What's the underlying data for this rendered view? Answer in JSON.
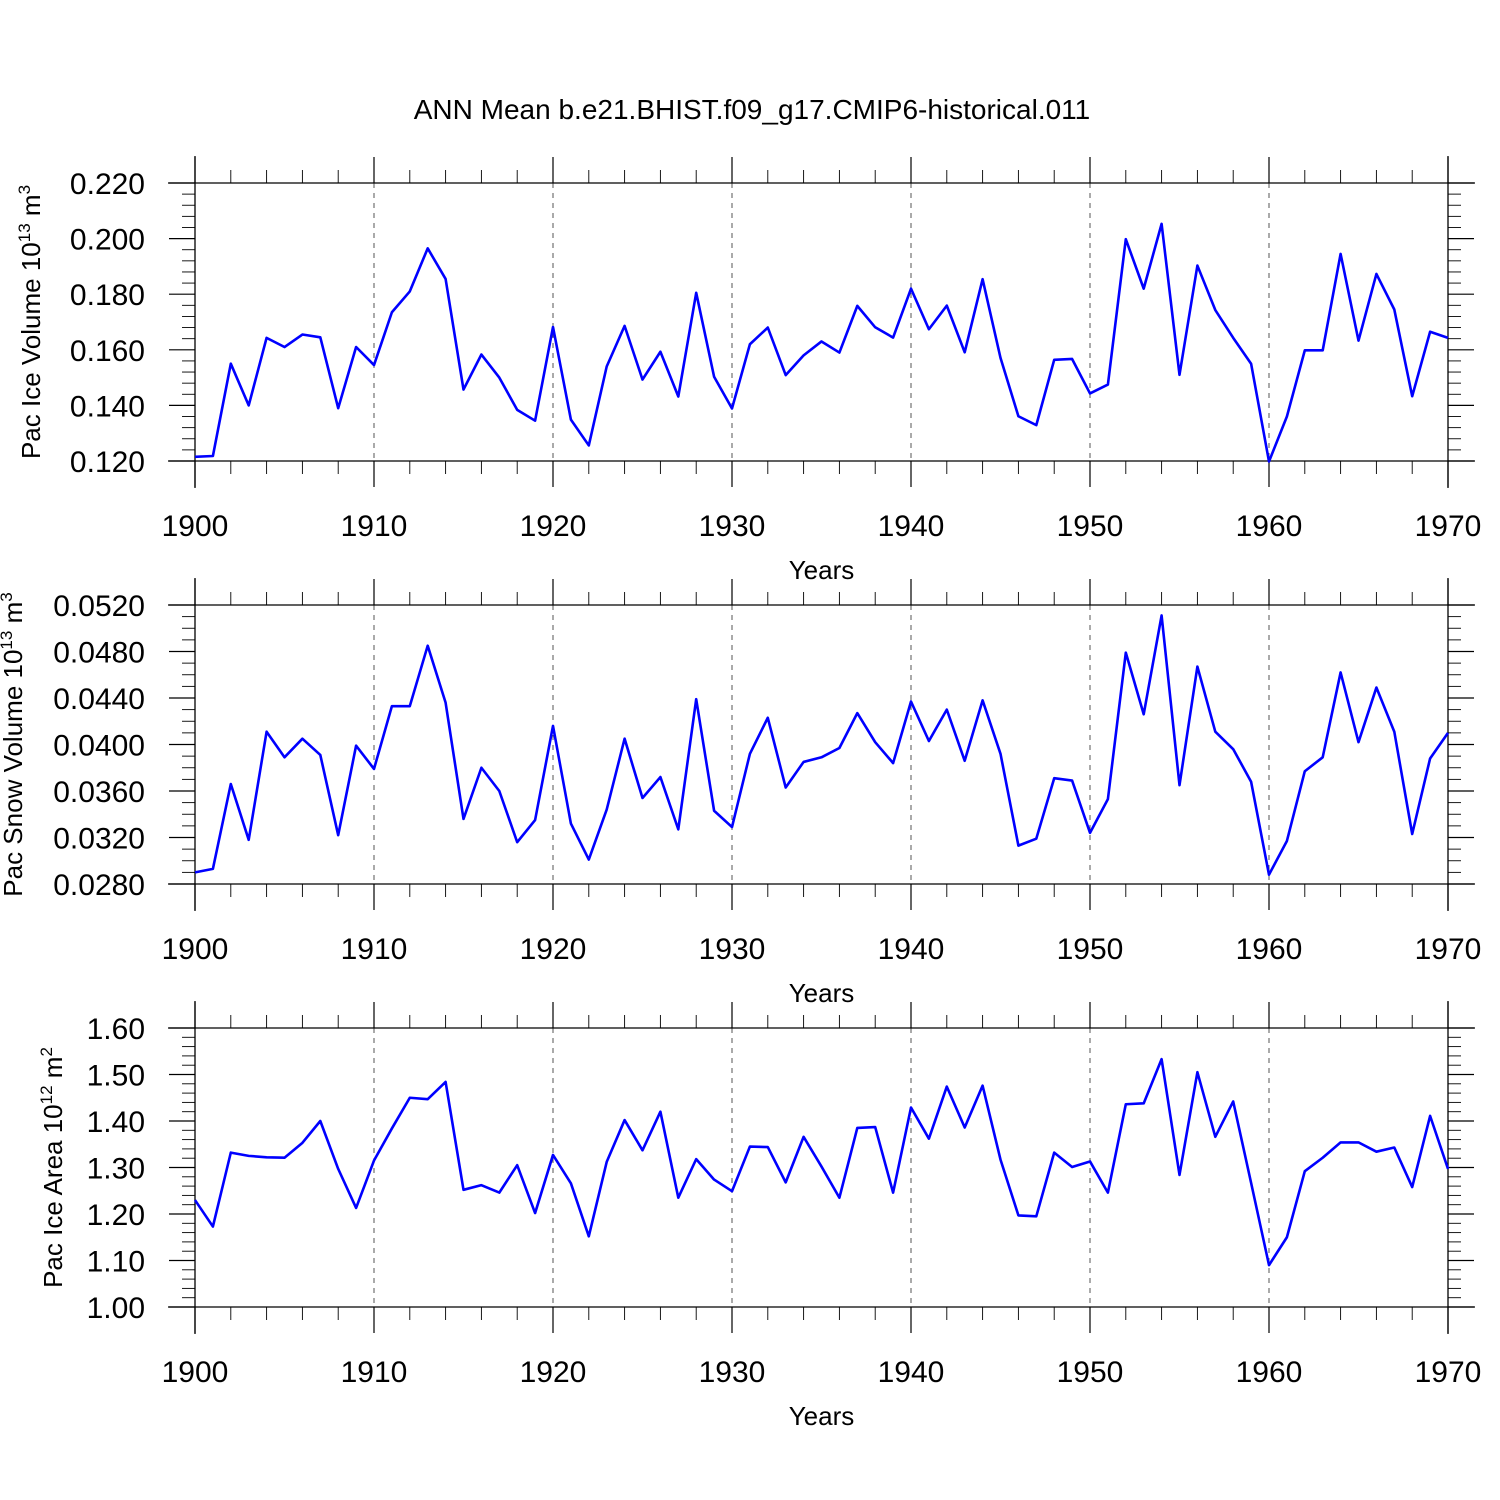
{
  "figure": {
    "title": "ANN Mean b.e21.BHIST.f09_g17.CMIP6-historical.011"
  },
  "colors": {
    "series": "#0000ff",
    "axes": "#000000",
    "grid": "#555555"
  },
  "chart_data": [
    {
      "type": "line",
      "ylabel": {
        "base": "Pac Ice Volume 10",
        "exp": "13",
        "unit": " m",
        "unit_exp": "3"
      },
      "xlabel": "Years",
      "xlim": [
        1900,
        1970
      ],
      "ylim": [
        0.12,
        0.22
      ],
      "x_ticks": [
        1900,
        1910,
        1920,
        1930,
        1940,
        1950,
        1960,
        1970
      ],
      "y_ticks": [
        "0.120",
        "0.140",
        "0.160",
        "0.180",
        "0.200",
        "0.220"
      ],
      "grid": "dashed vertical at decades",
      "series": [
        {
          "x_start": 1900,
          "values": [
            0.1215,
            0.1218,
            0.155,
            0.14,
            0.1643,
            0.161,
            0.1655,
            0.1645,
            0.139,
            0.161,
            0.1545,
            0.1735,
            0.181,
            0.1965,
            0.1855,
            0.1457,
            0.1583,
            0.15,
            0.1384,
            0.1345,
            0.1682,
            0.1349,
            0.1256,
            0.154,
            0.1686,
            0.1493,
            0.1593,
            0.1432,
            0.1805,
            0.1503,
            0.1389,
            0.162,
            0.168,
            0.1509,
            0.158,
            0.163,
            0.159,
            0.1758,
            0.1681,
            0.1644,
            0.182,
            0.1674,
            0.1759,
            0.1591,
            0.1854,
            0.1571,
            0.1361,
            0.1329,
            0.1564,
            0.1567,
            0.1443,
            0.1475,
            0.1998,
            0.182,
            0.2053,
            0.151,
            0.1903,
            0.1743,
            0.1643,
            0.155,
            0.1198,
            0.136,
            0.1598,
            0.1598,
            0.1945,
            0.1633,
            0.1873,
            0.1745,
            0.1433,
            0.1665,
            0.1643
          ]
        }
      ]
    },
    {
      "type": "line",
      "ylabel": {
        "base": "Pac Snow Volume 10",
        "exp": "13",
        "unit": " m",
        "unit_exp": "3"
      },
      "xlabel": "Years",
      "xlim": [
        1900,
        1970
      ],
      "ylim": [
        0.028,
        0.052
      ],
      "x_ticks": [
        1900,
        1910,
        1920,
        1930,
        1940,
        1950,
        1960,
        1970
      ],
      "y_ticks": [
        "0.0280",
        "0.0320",
        "0.0360",
        "0.0400",
        "0.0440",
        "0.0480",
        "0.0520"
      ],
      "grid": "dashed vertical at decades",
      "series": [
        {
          "x_start": 1900,
          "values": [
            0.029,
            0.0293,
            0.0366,
            0.0318,
            0.0411,
            0.0389,
            0.0405,
            0.0391,
            0.0322,
            0.0399,
            0.0379,
            0.0433,
            0.0433,
            0.0485,
            0.0436,
            0.0336,
            0.038,
            0.036,
            0.0316,
            0.0335,
            0.0416,
            0.0332,
            0.0301,
            0.0344,
            0.0405,
            0.0354,
            0.0372,
            0.0327,
            0.0439,
            0.0343,
            0.0329,
            0.0392,
            0.0423,
            0.0363,
            0.0385,
            0.0389,
            0.0397,
            0.0427,
            0.0402,
            0.0384,
            0.0437,
            0.0403,
            0.043,
            0.0386,
            0.0438,
            0.0392,
            0.0313,
            0.0319,
            0.0371,
            0.0369,
            0.0324,
            0.0353,
            0.0479,
            0.0426,
            0.0511,
            0.0365,
            0.0467,
            0.0411,
            0.0396,
            0.0368,
            0.0288,
            0.0317,
            0.0377,
            0.0389,
            0.0462,
            0.0402,
            0.0449,
            0.0411,
            0.0323,
            0.0388,
            0.041
          ]
        }
      ]
    },
    {
      "type": "line",
      "ylabel": {
        "base": "Pac Ice Area 10",
        "exp": "12",
        "unit": " m",
        "unit_exp": "2"
      },
      "xlabel": "Years",
      "xlim": [
        1900,
        1970
      ],
      "ylim": [
        1.0,
        1.6
      ],
      "x_ticks": [
        1900,
        1910,
        1920,
        1930,
        1940,
        1950,
        1960,
        1970
      ],
      "y_ticks": [
        "1.00",
        "1.10",
        "1.20",
        "1.30",
        "1.40",
        "1.50",
        "1.60"
      ],
      "grid": "dashed vertical at decades",
      "series": [
        {
          "x_start": 1900,
          "values": [
            1.23,
            1.173,
            1.332,
            1.325,
            1.322,
            1.321,
            1.353,
            1.4,
            1.297,
            1.213,
            1.315,
            1.384,
            1.45,
            1.447,
            1.484,
            1.252,
            1.262,
            1.246,
            1.305,
            1.202,
            1.327,
            1.266,
            1.152,
            1.312,
            1.402,
            1.337,
            1.42,
            1.235,
            1.318,
            1.274,
            1.249,
            1.345,
            1.344,
            1.268,
            1.366,
            1.302,
            1.235,
            1.385,
            1.387,
            1.246,
            1.429,
            1.362,
            1.474,
            1.386,
            1.476,
            1.317,
            1.197,
            1.195,
            1.332,
            1.301,
            1.313,
            1.246,
            1.436,
            1.438,
            1.533,
            1.284,
            1.505,
            1.366,
            1.442,
            1.267,
            1.09,
            1.15,
            1.292,
            1.321,
            1.354,
            1.354,
            1.334,
            1.343,
            1.258,
            1.411,
            1.297
          ]
        }
      ]
    }
  ]
}
